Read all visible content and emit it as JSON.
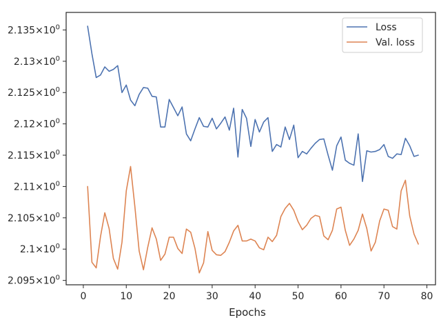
{
  "chart_data": {
    "type": "line",
    "title": "",
    "xlabel": "Epochs",
    "ylabel": "",
    "xlim": [
      -4,
      82
    ],
    "ylim": [
      2.0943,
      2.1378
    ],
    "x_ticks": [
      0,
      10,
      20,
      30,
      40,
      50,
      60,
      70,
      80
    ],
    "y_ticks": [
      {
        "value": 2.095,
        "base": "2.095",
        "mult": "×",
        "exp": "10",
        "sup": "0"
      },
      {
        "value": 2.1,
        "base": "2.1",
        "mult": "×",
        "exp": "10",
        "sup": "0"
      },
      {
        "value": 2.105,
        "base": "2.105",
        "mult": "×",
        "exp": "10",
        "sup": "0"
      },
      {
        "value": 2.11,
        "base": "2.11",
        "mult": "×",
        "exp": "10",
        "sup": "0"
      },
      {
        "value": 2.115,
        "base": "2.115",
        "mult": "×",
        "exp": "10",
        "sup": "0"
      },
      {
        "value": 2.12,
        "base": "2.12",
        "mult": "×",
        "exp": "10",
        "sup": "0"
      },
      {
        "value": 2.125,
        "base": "2.125",
        "mult": "×",
        "exp": "10",
        "sup": "0"
      },
      {
        "value": 2.13,
        "base": "2.13",
        "mult": "×",
        "exp": "10",
        "sup": "0"
      },
      {
        "value": 2.135,
        "base": "2.135",
        "mult": "×",
        "exp": "10",
        "sup": "0"
      }
    ],
    "log_scale_y": true,
    "grid": false,
    "legend": {
      "position": "top-right",
      "entries": [
        "Loss",
        "Val. loss"
      ]
    },
    "x": [
      1,
      2,
      3,
      4,
      5,
      6,
      7,
      8,
      9,
      10,
      11,
      12,
      13,
      14,
      15,
      16,
      17,
      18,
      19,
      20,
      21,
      22,
      23,
      24,
      25,
      26,
      27,
      28,
      29,
      30,
      31,
      32,
      33,
      34,
      35,
      36,
      37,
      38,
      39,
      40,
      41,
      42,
      43,
      44,
      45,
      46,
      47,
      48,
      49,
      50,
      51,
      52,
      53,
      54,
      55,
      56,
      57,
      58,
      59,
      60,
      61,
      62,
      63,
      64,
      65,
      66,
      67,
      68,
      69,
      70,
      71,
      72,
      73,
      74,
      75,
      76,
      77,
      78
    ],
    "series": [
      {
        "name": "Loss",
        "color": "#4c72b0",
        "values": [
          2.1356,
          2.1312,
          2.1274,
          2.1278,
          2.1291,
          2.1284,
          2.1287,
          2.1293,
          2.125,
          2.1262,
          2.1238,
          2.1229,
          2.1247,
          2.1258,
          2.1257,
          2.1244,
          2.1243,
          2.1195,
          2.1195,
          2.1239,
          2.1226,
          2.1213,
          2.1227,
          2.1184,
          2.1173,
          2.1192,
          2.121,
          2.1196,
          2.1195,
          2.1209,
          2.1192,
          2.1201,
          2.1211,
          2.119,
          2.1225,
          2.1147,
          2.1223,
          2.1209,
          2.1164,
          2.1207,
          2.1187,
          2.1203,
          2.121,
          2.1156,
          2.1167,
          2.1163,
          2.1195,
          2.1175,
          2.1198,
          2.1146,
          2.1156,
          2.1152,
          2.1161,
          2.1169,
          2.1175,
          2.1176,
          2.115,
          2.1126,
          2.1165,
          2.1179,
          2.1142,
          2.1137,
          2.1134,
          2.1184,
          2.1108,
          2.1157,
          2.1155,
          2.1156,
          2.1159,
          2.1167,
          2.1148,
          2.1145,
          2.1152,
          2.1151,
          2.1177,
          2.1165,
          2.1148,
          2.115
        ]
      },
      {
        "name": "Val. loss",
        "color": "#dd8452",
        "values": [
          2.11,
          2.0979,
          2.097,
          2.102,
          2.1058,
          2.1033,
          2.0985,
          2.0968,
          2.1011,
          2.1093,
          2.1132,
          2.1068,
          2.0997,
          2.0967,
          2.1003,
          2.1034,
          2.1016,
          2.0982,
          2.0992,
          2.1019,
          2.1019,
          2.1001,
          2.0993,
          2.1032,
          2.1027,
          2.1001,
          2.0962,
          2.0978,
          2.1028,
          2.0998,
          2.0991,
          2.099,
          2.0996,
          2.1011,
          2.1029,
          2.1038,
          2.1013,
          2.1013,
          2.1016,
          2.1013,
          2.1002,
          2.0999,
          2.1019,
          2.1012,
          2.1022,
          2.1052,
          2.1065,
          2.1073,
          2.1062,
          2.1044,
          2.1031,
          2.1038,
          2.1049,
          2.1054,
          2.1052,
          2.1021,
          2.1015,
          2.103,
          2.1064,
          2.1067,
          2.103,
          2.1006,
          2.1016,
          2.103,
          2.1056,
          2.1033,
          2.0997,
          2.1011,
          2.1045,
          2.1064,
          2.1062,
          2.1036,
          2.1032,
          2.1093,
          2.111,
          2.1053,
          2.1024,
          2.1008
        ]
      }
    ]
  }
}
